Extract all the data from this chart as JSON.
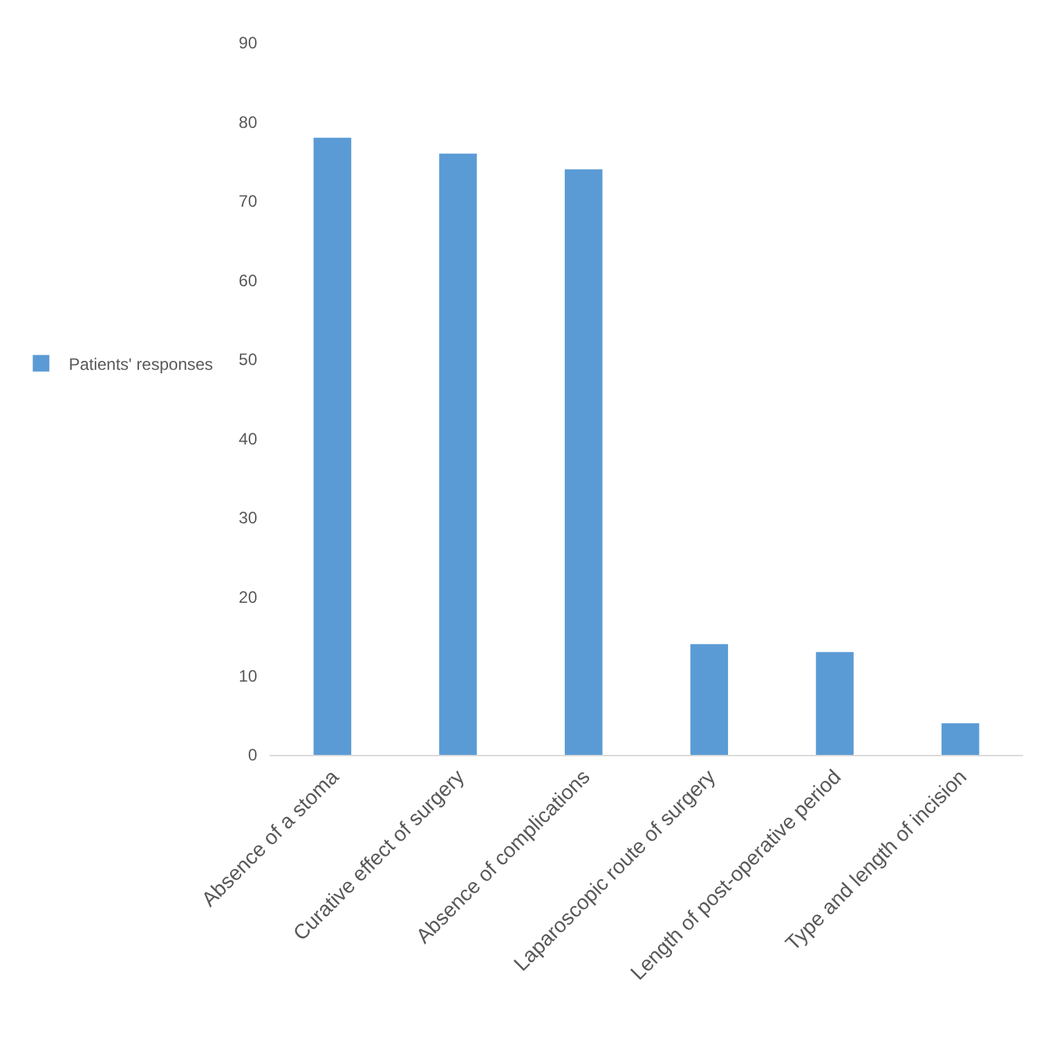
{
  "chart_data": {
    "type": "bar",
    "categories": [
      "Absence of a stoma",
      "Curative effect of surgery",
      "Absence of complications",
      "Laparoscopic route of surgery",
      "Length of post-operative period",
      "Type and length of incision"
    ],
    "series": [
      {
        "name": "Patients' responses",
        "color": "#5b9bd5",
        "values": [
          78,
          76,
          74,
          14,
          13,
          4
        ]
      }
    ],
    "ylim": [
      0,
      90
    ],
    "yticks": [
      0,
      10,
      20,
      30,
      40,
      50,
      60,
      70,
      80,
      90
    ],
    "grid": false,
    "legend": "left"
  }
}
